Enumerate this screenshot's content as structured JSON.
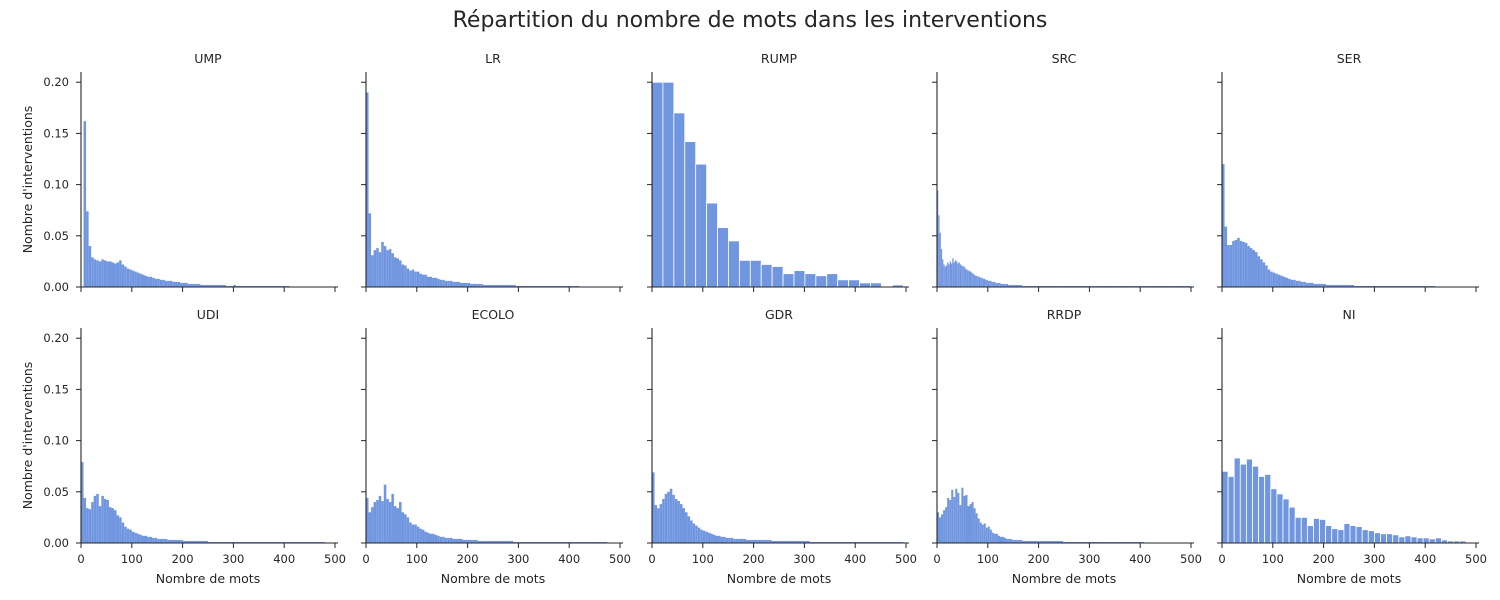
{
  "figure": {
    "title": "Répartition du nombre de mots dans les interventions"
  },
  "colors": {
    "bar_fill": "#7196e0",
    "bar_edge": "#ffffff",
    "axis": "#262626"
  },
  "chart_data": [
    {
      "type": "bar",
      "title": "UMP",
      "xlabel": "",
      "ylabel": "Nombre d'interventions",
      "xlim": [
        0,
        500
      ],
      "ylim": [
        0,
        0.21
      ],
      "xticks": [
        0,
        100,
        200,
        300,
        400,
        500
      ],
      "yticks": [
        0.0,
        0.05,
        0.1,
        0.15,
        0.2
      ],
      "bin_width": 5,
      "x_start": 0,
      "values": [
        0.0,
        0.162,
        0.074,
        0.04,
        0.029,
        0.027,
        0.026,
        0.025,
        0.027,
        0.026,
        0.025,
        0.025,
        0.024,
        0.023,
        0.024,
        0.026,
        0.022,
        0.02,
        0.018,
        0.017,
        0.016,
        0.015,
        0.014,
        0.013,
        0.012,
        0.011,
        0.01,
        0.01,
        0.009,
        0.008,
        0.008,
        0.007,
        0.007,
        0.006,
        0.006,
        0.006,
        0.005,
        0.005,
        0.005,
        0.004,
        0.004,
        0.004,
        0.003,
        0.003,
        0.003,
        0.003,
        0.003,
        0.002,
        0.002,
        0.002,
        0.002,
        0.002,
        0.002,
        0.002,
        0.002,
        0.002,
        0.002,
        0.001,
        0.001,
        0.001,
        0.002,
        0.001,
        0.001,
        0.001,
        0.001,
        0.001,
        0.001,
        0.001,
        0.001,
        0.001,
        0.001,
        0.001,
        0.001,
        0.001,
        0.001,
        0.001,
        0.001,
        0.001,
        0.001,
        0.001,
        0.001,
        0.001
      ]
    },
    {
      "type": "bar",
      "title": "LR",
      "xlabel": "",
      "ylabel": "",
      "xlim": [
        0,
        500
      ],
      "ylim": [
        0,
        0.21
      ],
      "xticks": [
        0,
        100,
        200,
        300,
        400,
        500
      ],
      "yticks": [
        0.0,
        0.05,
        0.1,
        0.15,
        0.2
      ],
      "bin_width": 5,
      "x_start": 0,
      "values": [
        0.19,
        0.072,
        0.031,
        0.036,
        0.038,
        0.034,
        0.044,
        0.04,
        0.036,
        0.037,
        0.033,
        0.029,
        0.028,
        0.026,
        0.022,
        0.021,
        0.018,
        0.016,
        0.017,
        0.015,
        0.015,
        0.013,
        0.012,
        0.012,
        0.01,
        0.01,
        0.009,
        0.009,
        0.008,
        0.007,
        0.007,
        0.006,
        0.006,
        0.006,
        0.005,
        0.005,
        0.005,
        0.004,
        0.004,
        0.004,
        0.004,
        0.003,
        0.003,
        0.003,
        0.003,
        0.003,
        0.002,
        0.002,
        0.002,
        0.002,
        0.002,
        0.002,
        0.002,
        0.002,
        0.002,
        0.002,
        0.002,
        0.002,
        0.002,
        0.001,
        0.001,
        0.001,
        0.001,
        0.001,
        0.001,
        0.001,
        0.001,
        0.001,
        0.001,
        0.001,
        0.001,
        0.001,
        0.001,
        0.001,
        0.001,
        0.001,
        0.001,
        0.001,
        0.001,
        0.001,
        0.001,
        0.001,
        0.001,
        0.001
      ]
    },
    {
      "type": "bar",
      "title": "RUMP",
      "xlabel": "",
      "ylabel": "",
      "xlim": [
        0,
        500
      ],
      "ylim": [
        0,
        0.21
      ],
      "xticks": [
        0,
        100,
        200,
        300,
        400,
        500
      ],
      "yticks": [
        0.0,
        0.05,
        0.1,
        0.15,
        0.2
      ],
      "bin_width": 21.5,
      "x_start": 0,
      "values": [
        0.2,
        0.2,
        0.17,
        0.142,
        0.12,
        0.082,
        0.058,
        0.045,
        0.026,
        0.026,
        0.022,
        0.02,
        0.013,
        0.016,
        0.013,
        0.011,
        0.013,
        0.007,
        0.007,
        0.004,
        0.004,
        0.0,
        0.002
      ]
    },
    {
      "type": "bar",
      "title": "SRC",
      "xlabel": "",
      "ylabel": "",
      "xlim": [
        0,
        500
      ],
      "ylim": [
        0,
        0.21
      ],
      "xticks": [
        0,
        100,
        200,
        300,
        400,
        500
      ],
      "yticks": [
        0.0,
        0.05,
        0.1,
        0.15,
        0.2
      ],
      "bin_width": 2.5,
      "x_start": 0,
      "values": [
        0.094,
        0.07,
        0.053,
        0.037,
        0.027,
        0.022,
        0.02,
        0.021,
        0.024,
        0.022,
        0.025,
        0.023,
        0.028,
        0.024,
        0.026,
        0.025,
        0.023,
        0.024,
        0.022,
        0.021,
        0.02,
        0.02,
        0.018,
        0.017,
        0.016,
        0.016,
        0.015,
        0.014,
        0.013,
        0.012,
        0.011,
        0.011,
        0.01,
        0.01,
        0.009,
        0.009,
        0.008,
        0.008,
        0.007,
        0.007,
        0.006,
        0.006,
        0.006,
        0.005,
        0.005,
        0.005,
        0.004,
        0.004,
        0.004,
        0.004,
        0.003,
        0.003,
        0.003,
        0.003,
        0.003,
        0.003,
        0.002,
        0.002,
        0.002,
        0.002,
        0.002,
        0.002,
        0.002,
        0.002,
        0.002,
        0.002,
        0.002,
        0.001,
        0.001,
        0.001,
        0.001,
        0.001,
        0.001,
        0.001,
        0.001,
        0.001,
        0.001,
        0.001,
        0.001,
        0.001,
        0.001,
        0.001,
        0.001,
        0.001,
        0.001,
        0.001,
        0.001,
        0.001,
        0.001,
        0.001,
        0.001,
        0.001,
        0.001,
        0.001,
        0.001,
        0.001,
        0.001,
        0.001,
        0.001,
        0.001,
        0.001,
        0.001,
        0.001,
        0.001,
        0.001,
        0.001,
        0.001,
        0.001,
        0.001,
        0.001,
        0.001,
        0.001,
        0.001,
        0.001,
        0.001,
        0.001,
        0.001,
        0.001,
        0.001,
        0.001,
        0.001,
        0.001,
        0.001,
        0.001,
        0.001,
        0.001,
        0.001,
        0.001,
        0.001,
        0.001,
        0.001,
        0.001,
        0.001,
        0.001,
        0.001,
        0.001,
        0.001,
        0.001,
        0.001,
        0.001,
        0.001,
        0.001,
        0.001,
        0.001,
        0.001,
        0.001,
        0.001,
        0.001,
        0.001,
        0.001,
        0.001,
        0.001,
        0.001,
        0.001,
        0.001,
        0.001,
        0.001,
        0.001,
        0.001,
        0.001,
        0.001,
        0.001,
        0.001,
        0.001,
        0.001,
        0.001,
        0.001,
        0.001,
        0.001,
        0.001,
        0.001,
        0.001,
        0.001,
        0.001,
        0.001,
        0.001,
        0.001,
        0.001,
        0.001,
        0.001,
        0.001,
        0.001,
        0.001,
        0.001,
        0.001,
        0.001,
        0.001,
        0.001,
        0.001,
        0.001,
        0.001,
        0.001,
        0.001,
        0.001,
        0.001,
        0.001,
        0.001,
        0.001,
        0.001,
        0.001,
        0.001,
        0.001
      ]
    },
    {
      "type": "bar",
      "title": "SER",
      "xlabel": "",
      "ylabel": "",
      "xlim": [
        0,
        500
      ],
      "ylim": [
        0,
        0.21
      ],
      "xticks": [
        0,
        100,
        200,
        300,
        400,
        500
      ],
      "yticks": [
        0.0,
        0.05,
        0.1,
        0.15,
        0.2
      ],
      "bin_width": 5,
      "x_start": 0,
      "values": [
        0.12,
        0.059,
        0.041,
        0.041,
        0.045,
        0.046,
        0.048,
        0.045,
        0.044,
        0.043,
        0.04,
        0.038,
        0.036,
        0.034,
        0.03,
        0.027,
        0.024,
        0.021,
        0.017,
        0.015,
        0.014,
        0.013,
        0.012,
        0.011,
        0.01,
        0.009,
        0.008,
        0.007,
        0.007,
        0.006,
        0.006,
        0.005,
        0.005,
        0.004,
        0.004,
        0.004,
        0.003,
        0.003,
        0.003,
        0.003,
        0.003,
        0.002,
        0.002,
        0.002,
        0.002,
        0.002,
        0.002,
        0.002,
        0.002,
        0.002,
        0.002,
        0.002,
        0.001,
        0.001,
        0.001,
        0.001,
        0.001,
        0.001,
        0.001,
        0.001,
        0.001,
        0.001,
        0.001,
        0.001,
        0.001,
        0.001,
        0.001,
        0.001,
        0.001,
        0.001,
        0.001,
        0.001,
        0.001,
        0.001,
        0.001,
        0.001,
        0.001,
        0.001,
        0.001,
        0.001,
        0.001,
        0.001,
        0.001,
        0.001
      ]
    },
    {
      "type": "bar",
      "title": "UDI",
      "xlabel": "Nombre de mots",
      "ylabel": "Nombre d'interventions",
      "xlim": [
        0,
        500
      ],
      "ylim": [
        0,
        0.21
      ],
      "xticks": [
        0,
        100,
        200,
        300,
        400,
        500
      ],
      "yticks": [
        0.0,
        0.05,
        0.1,
        0.15,
        0.2
      ],
      "bin_width": 5,
      "x_start": 0,
      "values": [
        0.079,
        0.044,
        0.034,
        0.033,
        0.04,
        0.046,
        0.048,
        0.036,
        0.046,
        0.043,
        0.042,
        0.035,
        0.034,
        0.032,
        0.027,
        0.025,
        0.02,
        0.016,
        0.014,
        0.013,
        0.011,
        0.01,
        0.009,
        0.008,
        0.007,
        0.007,
        0.006,
        0.006,
        0.005,
        0.005,
        0.004,
        0.004,
        0.004,
        0.004,
        0.003,
        0.003,
        0.003,
        0.003,
        0.003,
        0.003,
        0.002,
        0.002,
        0.002,
        0.002,
        0.002,
        0.002,
        0.002,
        0.002,
        0.002,
        0.002,
        0.001,
        0.001,
        0.001,
        0.001,
        0.001,
        0.001,
        0.001,
        0.001,
        0.001,
        0.001,
        0.001,
        0.001,
        0.001,
        0.001,
        0.001,
        0.001,
        0.001,
        0.001,
        0.001,
        0.001,
        0.001,
        0.001,
        0.001,
        0.001,
        0.001,
        0.001,
        0.001,
        0.001,
        0.001,
        0.001,
        0.001,
        0.001,
        0.001,
        0.001,
        0.001,
        0.001,
        0.001,
        0.001,
        0.001,
        0.001,
        0.001,
        0.001,
        0.001,
        0.001,
        0.001,
        0.001
      ]
    },
    {
      "type": "bar",
      "title": "ECOLO",
      "xlabel": "Nombre de mots",
      "ylabel": "",
      "xlim": [
        0,
        500
      ],
      "ylim": [
        0,
        0.21
      ],
      "xticks": [
        0,
        100,
        200,
        300,
        400,
        500
      ],
      "yticks": [
        0.0,
        0.05,
        0.1,
        0.15,
        0.2
      ],
      "bin_width": 5,
      "x_start": 0,
      "values": [
        0.044,
        0.03,
        0.035,
        0.04,
        0.042,
        0.046,
        0.041,
        0.057,
        0.043,
        0.04,
        0.048,
        0.036,
        0.034,
        0.04,
        0.03,
        0.028,
        0.025,
        0.02,
        0.018,
        0.018,
        0.016,
        0.014,
        0.013,
        0.011,
        0.01,
        0.009,
        0.009,
        0.008,
        0.007,
        0.006,
        0.006,
        0.005,
        0.005,
        0.005,
        0.004,
        0.004,
        0.004,
        0.004,
        0.003,
        0.003,
        0.003,
        0.003,
        0.003,
        0.003,
        0.002,
        0.002,
        0.002,
        0.002,
        0.002,
        0.002,
        0.002,
        0.002,
        0.002,
        0.002,
        0.002,
        0.002,
        0.002,
        0.002,
        0.001,
        0.001,
        0.001,
        0.001,
        0.001,
        0.001,
        0.001,
        0.001,
        0.001,
        0.001,
        0.001,
        0.001,
        0.001,
        0.001,
        0.001,
        0.001,
        0.001,
        0.001,
        0.001,
        0.001,
        0.001,
        0.001,
        0.001,
        0.001,
        0.001,
        0.001,
        0.001,
        0.001,
        0.001,
        0.001,
        0.001,
        0.001,
        0.001,
        0.001,
        0.001,
        0.001,
        0.001
      ]
    },
    {
      "type": "bar",
      "title": "GDR",
      "xlabel": "Nombre de mots",
      "ylabel": "",
      "xlim": [
        0,
        500
      ],
      "ylim": [
        0,
        0.21
      ],
      "xticks": [
        0,
        100,
        200,
        300,
        400,
        500
      ],
      "yticks": [
        0.0,
        0.05,
        0.1,
        0.15,
        0.2
      ],
      "bin_width": 5,
      "x_start": 0,
      "values": [
        0.069,
        0.037,
        0.034,
        0.038,
        0.043,
        0.048,
        0.05,
        0.053,
        0.047,
        0.043,
        0.041,
        0.038,
        0.034,
        0.03,
        0.026,
        0.022,
        0.019,
        0.017,
        0.015,
        0.013,
        0.012,
        0.011,
        0.01,
        0.009,
        0.008,
        0.007,
        0.007,
        0.006,
        0.006,
        0.005,
        0.005,
        0.005,
        0.004,
        0.004,
        0.004,
        0.004,
        0.004,
        0.003,
        0.003,
        0.003,
        0.003,
        0.003,
        0.003,
        0.003,
        0.003,
        0.003,
        0.003,
        0.002,
        0.002,
        0.002,
        0.002,
        0.002,
        0.002,
        0.002,
        0.002,
        0.002,
        0.002,
        0.002,
        0.002,
        0.002,
        0.002,
        0.002,
        0.001,
        0.001,
        0.001,
        0.001,
        0.001,
        0.001,
        0.001,
        0.001,
        0.001,
        0.001,
        0.001,
        0.001,
        0.001,
        0.001,
        0.001,
        0.001,
        0.001,
        0.001,
        0.001,
        0.001,
        0.001,
        0.001,
        0.001,
        0.001,
        0.001,
        0.001,
        0.001,
        0.001,
        0.001,
        0.001,
        0.001,
        0.001,
        0.001,
        0.001,
        0.001,
        0.001,
        0.001
      ]
    },
    {
      "type": "bar",
      "title": "RRDP",
      "xlabel": "Nombre de mots",
      "ylabel": "",
      "xlim": [
        0,
        500
      ],
      "ylim": [
        0,
        0.21
      ],
      "xticks": [
        0,
        100,
        200,
        300,
        400,
        500
      ],
      "yticks": [
        0.0,
        0.05,
        0.1,
        0.15,
        0.2
      ],
      "bin_width": 4,
      "x_start": 0,
      "values": [
        0.03,
        0.025,
        0.028,
        0.032,
        0.035,
        0.044,
        0.042,
        0.052,
        0.045,
        0.053,
        0.049,
        0.037,
        0.054,
        0.046,
        0.047,
        0.036,
        0.038,
        0.04,
        0.034,
        0.029,
        0.024,
        0.02,
        0.018,
        0.019,
        0.015,
        0.016,
        0.013,
        0.01,
        0.009,
        0.009,
        0.007,
        0.006,
        0.006,
        0.005,
        0.004,
        0.004,
        0.004,
        0.003,
        0.003,
        0.003,
        0.003,
        0.003,
        0.002,
        0.002,
        0.002,
        0.002,
        0.002,
        0.002,
        0.002,
        0.002,
        0.002,
        0.002,
        0.002,
        0.002,
        0.002,
        0.002,
        0.002,
        0.002,
        0.002,
        0.002,
        0.002,
        0.002,
        0.001,
        0.001,
        0.001,
        0.001,
        0.001,
        0.001,
        0.001,
        0.001,
        0.001,
        0.001,
        0.001,
        0.001,
        0.001,
        0.001,
        0.001,
        0.001,
        0.001,
        0.001,
        0.001,
        0.001,
        0.001,
        0.001,
        0.001,
        0.001,
        0.001,
        0.001,
        0.001,
        0.001,
        0.001,
        0.001,
        0.001,
        0.001,
        0.001,
        0.001,
        0.001,
        0.001,
        0.001,
        0.001,
        0.001,
        0.001
      ]
    },
    {
      "type": "bar",
      "title": "NI",
      "xlabel": "Nombre de mots",
      "ylabel": "",
      "xlim": [
        0,
        500
      ],
      "ylim": [
        0,
        0.21
      ],
      "xticks": [
        0,
        100,
        200,
        300,
        400,
        500
      ],
      "yticks": [
        0.0,
        0.05,
        0.1,
        0.15,
        0.2
      ],
      "bin_width": 12,
      "x_start": 0,
      "values": [
        0.07,
        0.065,
        0.083,
        0.077,
        0.082,
        0.075,
        0.065,
        0.067,
        0.053,
        0.048,
        0.043,
        0.035,
        0.025,
        0.025,
        0.017,
        0.024,
        0.023,
        0.017,
        0.014,
        0.013,
        0.019,
        0.017,
        0.016,
        0.013,
        0.012,
        0.01,
        0.009,
        0.009,
        0.008,
        0.006,
        0.007,
        0.006,
        0.005,
        0.005,
        0.004,
        0.005,
        0.003,
        0.002,
        0.002,
        0.002
      ]
    }
  ]
}
